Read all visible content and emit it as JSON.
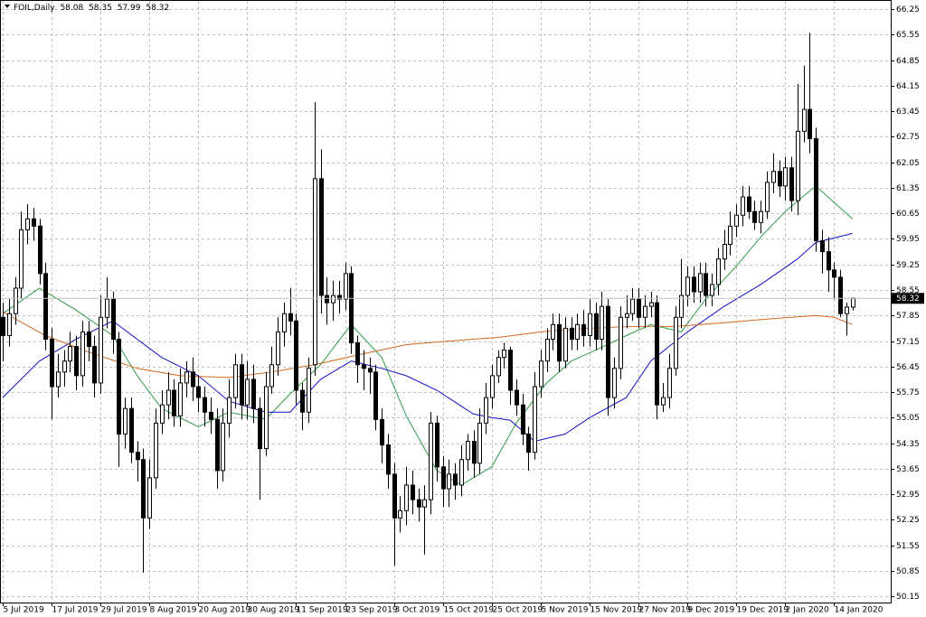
{
  "chart_data": {
    "type": "candlestick",
    "title": "FOIL,Daily",
    "open": [
      57.8,
      57.3,
      57.9,
      58.6,
      60.2,
      60.5,
      60.3,
      59.0,
      57.2,
      55.9,
      56.3,
      56.6,
      57.0,
      56.2,
      57.4,
      57.0,
      56.0,
      57.8,
      58.3,
      57.2,
      54.6,
      55.3,
      54.1,
      53.9,
      52.3,
      53.4,
      54.9,
      55.4,
      55.8,
      55.1,
      56.0,
      56.3,
      55.9,
      55.6,
      55.2,
      55.0,
      53.6,
      54.9,
      55.6,
      56.5,
      55.4,
      56.1,
      55.3,
      54.2,
      55.9,
      56.5,
      57.4,
      57.9,
      57.7,
      55.8,
      55.2,
      56.5,
      61.6,
      58.4,
      58.2,
      58.4,
      58.3,
      59.0,
      57.1,
      56.5,
      56.4,
      56.3,
      55.0,
      54.3,
      53.5,
      52.3,
      52.5,
      53.2,
      52.8,
      52.6,
      52.8,
      54.9,
      53.7,
      53.1,
      53.5,
      53.2,
      53.9,
      54.4,
      53.8,
      54.9,
      55.6,
      56.2,
      56.7,
      56.9,
      55.8,
      55.4,
      54.6,
      54.1,
      55.9,
      56.6,
      57.2,
      57.6,
      56.6,
      57.5,
      57.2,
      57.6,
      57.3,
      57.9,
      57.2,
      58.1,
      55.6,
      56.4,
      57.8,
      57.9,
      58.3,
      57.8,
      58.1,
      58.2,
      55.4,
      55.6,
      56.4,
      57.8,
      58.4,
      58.9,
      58.5,
      59.0,
      58.4,
      58.7,
      59.4,
      59.8,
      60.3,
      60.6,
      61.1,
      60.7,
      60.4,
      60.7,
      61.5,
      61.8,
      61.4,
      61.9,
      61.0,
      62.9,
      63.5,
      62.7,
      59.9,
      59.6,
      59.1,
      58.9,
      57.9,
      58.08
    ],
    "high": [
      58.2,
      58.3,
      58.9,
      60.7,
      60.9,
      60.8,
      60.5,
      59.3,
      57.5,
      56.8,
      56.9,
      57.4,
      57.3,
      57.7,
      57.7,
      57.3,
      58.4,
      58.9,
      58.5,
      57.4,
      55.6,
      55.6,
      54.4,
      54.2,
      53.9,
      55.3,
      55.8,
      56.3,
      56.1,
      56.4,
      56.6,
      56.7,
      56.2,
      55.9,
      55.6,
      55.3,
      55.3,
      56.1,
      56.8,
      56.8,
      56.6,
      56.5,
      55.6,
      56.3,
      57.0,
      57.8,
      58.2,
      58.6,
      57.9,
      56.0,
      56.7,
      63.7,
      62.4,
      58.9,
      58.8,
      58.8,
      59.3,
      59.2,
      57.3,
      56.9,
      56.7,
      56.5,
      55.3,
      54.6,
      53.8,
      52.9,
      53.7,
      53.6,
      53.1,
      53.2,
      55.2,
      55.1,
      54.0,
      53.9,
      53.8,
      54.3,
      54.6,
      54.7,
      55.3,
      56.0,
      56.5,
      56.9,
      57.1,
      57.0,
      56.1,
      55.7,
      54.8,
      56.3,
      56.9,
      57.5,
      57.9,
      57.9,
      57.8,
      57.8,
      57.9,
      58.0,
      58.3,
      58.2,
      58.5,
      58.3,
      56.7,
      58.1,
      58.4,
      58.6,
      58.6,
      58.4,
      58.5,
      58.4,
      56.0,
      56.8,
      58.1,
      59.4,
      59.2,
      59.2,
      59.3,
      59.3,
      59.0,
      59.7,
      60.2,
      60.7,
      60.9,
      61.4,
      61.4,
      61.0,
      61.0,
      61.8,
      62.3,
      62.1,
      62.2,
      62.2,
      64.2,
      64.7,
      65.6,
      63.0,
      60.2,
      60.0,
      59.3,
      59.1,
      58.2,
      58.35
    ],
    "low": [
      56.6,
      57.0,
      57.6,
      58.3,
      59.8,
      59.9,
      58.7,
      56.9,
      55.0,
      55.6,
      55.9,
      56.3,
      55.8,
      55.9,
      56.6,
      55.6,
      55.7,
      57.5,
      56.8,
      53.7,
      54.2,
      53.8,
      53.3,
      50.8,
      52.0,
      53.1,
      54.6,
      55.0,
      54.8,
      54.8,
      55.6,
      55.5,
      55.2,
      54.8,
      54.6,
      53.1,
      53.3,
      54.5,
      55.3,
      55.0,
      55.0,
      54.9,
      52.8,
      54.0,
      55.7,
      56.2,
      57.0,
      57.3,
      55.4,
      54.7,
      54.9,
      56.2,
      57.9,
      57.6,
      57.7,
      57.9,
      58.0,
      56.8,
      56.0,
      55.8,
      55.7,
      54.7,
      53.8,
      53.1,
      51.0,
      51.9,
      52.1,
      52.4,
      52.2,
      51.3,
      52.4,
      53.3,
      52.6,
      52.6,
      52.8,
      52.9,
      53.6,
      53.4,
      53.5,
      54.6,
      55.3,
      56.0,
      56.4,
      55.4,
      55.1,
      54.3,
      53.6,
      53.9,
      55.6,
      56.3,
      56.9,
      56.3,
      56.4,
      56.9,
      56.9,
      57.0,
      57.0,
      56.9,
      56.9,
      55.1,
      55.3,
      56.1,
      57.5,
      57.7,
      57.5,
      57.5,
      57.8,
      55.0,
      55.2,
      55.3,
      56.2,
      57.5,
      58.1,
      58.2,
      58.2,
      58.1,
      58.1,
      58.4,
      59.1,
      59.5,
      60.0,
      60.3,
      60.5,
      60.2,
      60.1,
      60.5,
      61.2,
      61.1,
      61.0,
      60.7,
      60.6,
      62.6,
      62.3,
      59.6,
      59.0,
      58.5,
      58.3,
      57.8,
      57.3,
      57.99
    ],
    "close": [
      57.3,
      57.9,
      58.6,
      60.2,
      60.5,
      60.3,
      59.0,
      57.2,
      55.9,
      56.3,
      56.6,
      57.0,
      56.2,
      57.4,
      57.0,
      56.0,
      57.8,
      58.3,
      57.2,
      54.6,
      55.3,
      54.1,
      53.9,
      52.3,
      53.4,
      54.9,
      55.4,
      55.8,
      55.1,
      56.0,
      56.3,
      55.9,
      55.6,
      55.2,
      55.0,
      53.6,
      54.9,
      55.6,
      56.5,
      55.4,
      56.1,
      55.3,
      54.2,
      55.9,
      56.5,
      57.4,
      57.9,
      57.7,
      55.8,
      55.2,
      56.4,
      61.6,
      58.4,
      58.2,
      58.4,
      58.3,
      59.0,
      57.1,
      56.5,
      56.4,
      56.3,
      55.0,
      54.3,
      53.5,
      52.3,
      52.5,
      53.2,
      52.8,
      52.6,
      52.8,
      54.9,
      53.7,
      53.1,
      53.5,
      53.2,
      53.9,
      54.4,
      53.8,
      54.9,
      55.6,
      56.2,
      56.7,
      56.9,
      55.8,
      55.4,
      54.6,
      54.1,
      55.9,
      56.6,
      57.2,
      57.6,
      56.6,
      57.5,
      57.2,
      57.6,
      57.3,
      57.9,
      57.2,
      58.1,
      55.6,
      56.4,
      57.8,
      57.9,
      58.3,
      57.8,
      58.1,
      58.2,
      55.4,
      55.6,
      56.4,
      57.8,
      58.4,
      58.9,
      58.5,
      59.0,
      58.4,
      58.7,
      59.4,
      59.8,
      60.3,
      60.6,
      61.1,
      60.7,
      60.4,
      60.7,
      61.5,
      61.8,
      61.4,
      61.9,
      61.0,
      62.9,
      63.5,
      62.7,
      59.9,
      59.6,
      59.1,
      58.9,
      57.9,
      58.08,
      58.32
    ],
    "up_color": "#ffffff",
    "down_color": "#000000",
    "outline_color": "#000000",
    "series": [
      {
        "color": "#2e9b4a",
        "x": [
          0,
          6,
          12,
          18,
          22,
          26,
          32,
          37,
          43,
          47,
          52,
          57,
          62,
          66,
          71,
          75,
          80,
          84,
          89,
          93,
          97,
          102,
          106,
          111,
          115,
          120,
          124,
          128,
          133,
          139
        ],
        "values": [
          57.9,
          58.6,
          58.0,
          57.3,
          56.2,
          55.3,
          54.8,
          55.2,
          55.0,
          55.7,
          56.5,
          57.6,
          56.7,
          55.1,
          53.6,
          53.2,
          53.7,
          54.9,
          56.0,
          56.6,
          56.9,
          57.3,
          57.6,
          57.4,
          58.3,
          59.2,
          60.0,
          60.7,
          61.4,
          60.5
        ]
      },
      {
        "color": "#1010c8",
        "x": [
          0,
          6,
          12,
          18,
          22,
          26,
          32,
          37,
          43,
          47,
          52,
          57,
          62,
          66,
          71,
          77,
          80,
          83,
          87,
          92,
          96,
          102,
          106,
          112,
          118,
          124,
          130,
          133,
          139
        ],
        "values": [
          55.6,
          56.6,
          57.2,
          57.7,
          57.2,
          56.7,
          56.2,
          55.5,
          55.2,
          55.2,
          56.1,
          56.6,
          56.4,
          56.2,
          55.8,
          55.15,
          55.05,
          54.98,
          54.4,
          54.6,
          55.05,
          55.6,
          56.6,
          57.4,
          58.1,
          58.7,
          59.4,
          59.85,
          60.1
        ]
      },
      {
        "color": "#d2691e",
        "x": [
          0,
          7,
          14,
          22,
          29,
          37,
          44,
          51,
          59,
          66,
          73,
          81,
          88,
          96,
          103,
          110,
          118,
          125,
          133,
          136,
          139
        ],
        "values": [
          57.95,
          57.3,
          56.85,
          56.4,
          56.2,
          56.15,
          56.3,
          56.5,
          56.8,
          57.05,
          57.15,
          57.25,
          57.4,
          57.5,
          57.55,
          57.55,
          57.65,
          57.75,
          57.85,
          57.8,
          57.6
        ]
      }
    ],
    "ylim": [
      49.98,
      66.5
    ],
    "yticks": [
      50.15,
      50.85,
      51.55,
      52.25,
      52.95,
      53.65,
      54.35,
      55.05,
      55.75,
      56.45,
      57.15,
      57.85,
      58.55,
      59.25,
      59.95,
      60.65,
      61.35,
      62.05,
      62.75,
      63.45,
      64.15,
      64.85,
      65.55,
      66.25
    ],
    "xticks": [
      {
        "value": 0,
        "label": "5 Jul 2019"
      },
      {
        "value": 8,
        "label": "17 Jul 2019"
      },
      {
        "value": 16,
        "label": "29 Jul 2019"
      },
      {
        "value": 24,
        "label": "8 Aug 2019"
      },
      {
        "value": 32,
        "label": "20 Aug 2019"
      },
      {
        "value": 40,
        "label": "30 Aug 2019"
      },
      {
        "value": 48,
        "label": "11 Sep 2019"
      },
      {
        "value": 56,
        "label": "23 Sep 2019"
      },
      {
        "value": 64,
        "label": "3 Oct 2019"
      },
      {
        "value": 72,
        "label": "15 Oct 2019"
      },
      {
        "value": 80,
        "label": "25 Oct 2019"
      },
      {
        "value": 88,
        "label": "5 Nov 2019"
      },
      {
        "value": 96,
        "label": "15 Nov 2019"
      },
      {
        "value": 104,
        "label": "27 Nov 2019"
      },
      {
        "value": 112,
        "label": "9 Dec 2019"
      },
      {
        "value": 120,
        "label": "19 Dec 2019"
      },
      {
        "value": 128,
        "label": "2 Jan 2020"
      },
      {
        "value": 136,
        "label": "14 Jan 2020"
      }
    ],
    "grid": true
  }
}
